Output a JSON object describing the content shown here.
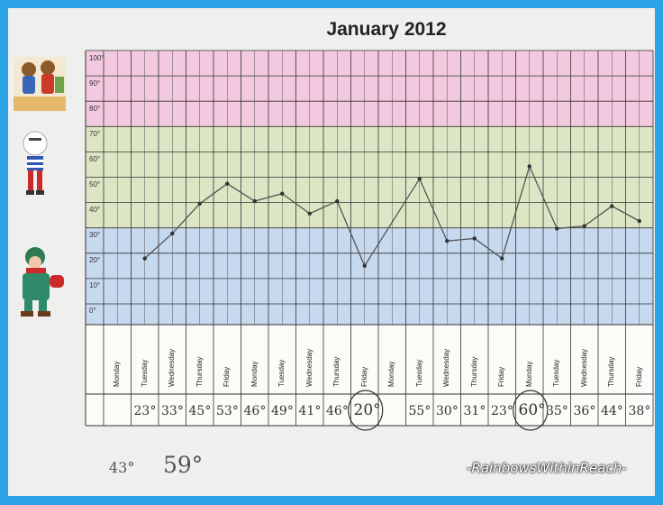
{
  "title": "January 2012",
  "colors": {
    "frame": "#2aa3e6",
    "band_hot": "#f2c9de",
    "band_warm": "#dde6c4",
    "band_cool": "#c6d9ef",
    "line": "#555555"
  },
  "chart_data": {
    "type": "line",
    "title": "January 2012",
    "y_tick_labels": [
      "100°",
      "90°",
      "80°",
      "70°",
      "60°",
      "50°",
      "40°",
      "30°",
      "20°",
      "10°",
      "0°"
    ],
    "ylim": [
      0,
      100
    ],
    "categories": [
      "Monday",
      "Tuesday",
      "Wednesday",
      "Thursday",
      "Friday",
      "Monday",
      "Tuesday",
      "Wednesday",
      "Thursday",
      "Friday",
      "Monday",
      "Tuesday",
      "Wednesday",
      "Thursday",
      "Friday",
      "Monday",
      "Tuesday",
      "Wednesday",
      "Thursday",
      "Friday"
    ],
    "reading_labels": [
      "",
      "23°",
      "33°",
      "45°",
      "53°",
      "46°",
      "49°",
      "41°",
      "46°",
      "20°",
      "",
      "55°",
      "30°",
      "31°",
      "23°",
      "60°",
      "35°",
      "36°",
      "44°",
      "38°"
    ],
    "circled": [
      "20°",
      "60°"
    ],
    "series": [
      {
        "values": [
          null,
          23,
          33,
          45,
          53,
          46,
          49,
          41,
          46,
          20,
          null,
          55,
          30,
          31,
          23,
          60,
          35,
          36,
          44,
          38
        ]
      }
    ],
    "grid": true
  },
  "notes": {
    "left": "43°",
    "right": "59°"
  },
  "watermark": "-RainbowsWithinReach-",
  "icons": [
    "bears-illustration-icon",
    "snowman-illustration-icon",
    "winter-child-illustration-icon"
  ]
}
